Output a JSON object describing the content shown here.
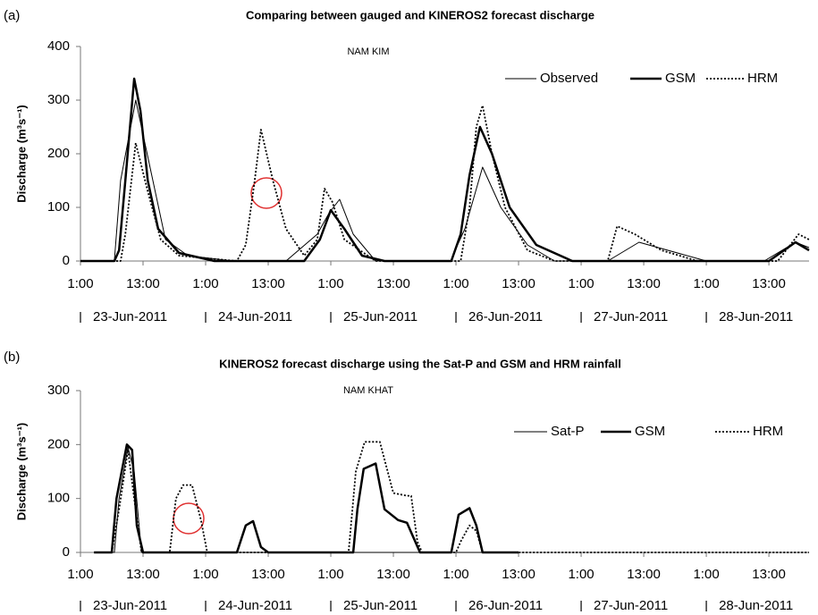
{
  "chart_data": [
    {
      "type": "line",
      "panel_label": "(a)",
      "title": "Comparing between gauged and KINEROS2 forecast discharge",
      "subtitle": "NAM KIM",
      "ylabel": "Discharge (m³s⁻¹)",
      "xlim": [
        1,
        140.7
      ],
      "ylim": [
        0,
        400
      ],
      "yticks": [
        0,
        100,
        200,
        300,
        400
      ],
      "xticks": [
        {
          "value": 1,
          "label": "1:00"
        },
        {
          "value": 13,
          "label": "13:00"
        },
        {
          "value": 25,
          "label": "1:00"
        },
        {
          "value": 37,
          "label": "13:00"
        },
        {
          "value": 49,
          "label": "1:00"
        },
        {
          "value": 61,
          "label": "13:00"
        },
        {
          "value": 73,
          "label": "1:00"
        },
        {
          "value": 85,
          "label": "13:00"
        },
        {
          "value": 97,
          "label": "1:00"
        },
        {
          "value": 109,
          "label": "13:00"
        },
        {
          "value": 121,
          "label": "1:00"
        },
        {
          "value": 133,
          "label": "13:00"
        }
      ],
      "day_ticks": [
        {
          "value": 1,
          "label": "23-Jun-2011"
        },
        {
          "value": 25,
          "label": "24-Jun-2011"
        },
        {
          "value": 49,
          "label": "25-Jun-2011"
        },
        {
          "value": 73,
          "label": "26-Jun-2011"
        },
        {
          "value": 97,
          "label": "27-Jun-2011"
        },
        {
          "value": 121,
          "label": "28-Jun-2011"
        }
      ],
      "legend": "upper right",
      "series": [
        {
          "name": "Observed",
          "color": "#000000",
          "style": "solid",
          "width": 1,
          "x": [
            1,
            7.5,
            8.7,
            11.6,
            17.3,
            21.6,
            30.1,
            40.4,
            46.4,
            48.7,
            50.7,
            53.3,
            57.6,
            72.1,
            73.3,
            74.7,
            78.1,
            81.6,
            86.7,
            91.9,
            102.1,
            108.1,
            121,
            132.1,
            138.1,
            140.7
          ],
          "values": [
            0,
            0,
            150,
            300,
            40,
            10,
            0,
            0,
            50,
            90,
            115,
            50,
            0,
            0,
            30,
            60,
            175,
            100,
            30,
            0,
            0,
            35,
            0,
            0,
            35,
            25
          ]
        },
        {
          "name": "GSM",
          "color": "#000000",
          "style": "solid",
          "width": 2.5,
          "x": [
            1,
            7.5,
            8.4,
            9.6,
            11.3,
            12.5,
            13.9,
            15.9,
            19.9,
            26.7,
            43.9,
            46.9,
            49,
            51.6,
            55,
            59.3,
            72.1,
            73.9,
            75.6,
            77.6,
            79.9,
            83.3,
            88.4,
            95.3,
            133,
            138.1,
            140.7
          ],
          "values": [
            0,
            0,
            20,
            150,
            340,
            280,
            150,
            60,
            15,
            0,
            0,
            40,
            95,
            60,
            10,
            0,
            0,
            50,
            160,
            250,
            200,
            100,
            30,
            0,
            0,
            35,
            20
          ]
        },
        {
          "name": "HRM",
          "color": "#000000",
          "style": "dotted",
          "width": 1.8,
          "x": [
            1,
            8.7,
            9.6,
            11.6,
            13.9,
            16.4,
            19.9,
            31,
            32.7,
            34.4,
            35.6,
            37.9,
            40.4,
            43.9,
            46.4,
            47.8,
            49.3,
            51.6,
            57.6,
            73.9,
            75.6,
            76.9,
            78.1,
            79.9,
            82.4,
            86.7,
            91.9,
            102.1,
            103.9,
            107.3,
            112.4,
            119.3,
            134.7,
            138.7,
            140.7
          ],
          "values": [
            0,
            0,
            50,
            220,
            130,
            40,
            10,
            0,
            30,
            150,
            245,
            150,
            60,
            10,
            40,
            135,
            110,
            40,
            0,
            0,
            100,
            250,
            290,
            200,
            100,
            20,
            0,
            0,
            65,
            50,
            20,
            0,
            0,
            50,
            40
          ]
        }
      ]
    },
    {
      "type": "line",
      "panel_label": "(b)",
      "title": "KINEROS2 forecast discharge using the Sat-P and GSM and HRM rainfall",
      "subtitle": "NAM KHAT",
      "ylabel": "Discharge (m³s⁻¹)",
      "xlim": [
        1,
        140.7
      ],
      "ylim": [
        0,
        300
      ],
      "yticks": [
        0,
        100,
        200,
        300
      ],
      "xticks": [
        {
          "value": 1,
          "label": "1:00"
        },
        {
          "value": 13,
          "label": "13:00"
        },
        {
          "value": 25,
          "label": "1:00"
        },
        {
          "value": 37,
          "label": "13:00"
        },
        {
          "value": 49,
          "label": "1:00"
        },
        {
          "value": 61,
          "label": "13:00"
        },
        {
          "value": 73,
          "label": "1:00"
        },
        {
          "value": 85,
          "label": "13:00"
        },
        {
          "value": 97,
          "label": "1:00"
        },
        {
          "value": 109,
          "label": "13:00"
        },
        {
          "value": 121,
          "label": "1:00"
        },
        {
          "value": 133,
          "label": "13:00"
        }
      ],
      "day_ticks": [
        {
          "value": 1,
          "label": "23-Jun-2011"
        },
        {
          "value": 25,
          "label": "24-Jun-2011"
        },
        {
          "value": 49,
          "label": "25-Jun-2011"
        },
        {
          "value": 73,
          "label": "26-Jun-2011"
        },
        {
          "value": 97,
          "label": "27-Jun-2011"
        },
        {
          "value": 121,
          "label": "28-Jun-2011"
        }
      ],
      "legend": "upper right",
      "series": [
        {
          "name": "Sat-P",
          "color": "#000000",
          "style": "solid",
          "width": 1,
          "x": [
            3.6,
            7.5,
            8.4,
            10.1,
            11.3,
            12.7,
            85
          ],
          "values": [
            0,
            0,
            100,
            195,
            150,
            0,
            0
          ]
        },
        {
          "name": "GSM",
          "color": "#000000",
          "style": "solid",
          "width": 2.5,
          "x": [
            3.6,
            7,
            7.9,
            9.9,
            10.9,
            11.8,
            13,
            31,
            32.7,
            34.1,
            35.6,
            37,
            53.3,
            54.1,
            55.3,
            57.6,
            59.3,
            61.9,
            63.6,
            66.1,
            72.1,
            73.5,
            75.6,
            76.9,
            78.1,
            85
          ],
          "values": [
            0,
            0,
            100,
            200,
            190,
            50,
            0,
            0,
            50,
            58,
            10,
            0,
            0,
            80,
            155,
            165,
            80,
            60,
            55,
            0,
            0,
            70,
            82,
            50,
            0,
            0
          ]
        },
        {
          "name": "HRM",
          "color": "#000000",
          "style": "dotted",
          "width": 1.8,
          "x": [
            3.6,
            7,
            8.4,
            10.1,
            11.3,
            12.7,
            18.1,
            19.3,
            20.7,
            22.4,
            24.1,
            25.3,
            52.4,
            53.8,
            55.5,
            58.4,
            61,
            63.6,
            64.4,
            65.6,
            66.5,
            73,
            73.9,
            75.6,
            76.9,
            78.1,
            140.7
          ],
          "values": [
            0,
            0,
            80,
            190,
            100,
            0,
            0,
            100,
            125,
            125,
            60,
            0,
            0,
            150,
            205,
            205,
            110,
            105,
            105,
            20,
            0,
            0,
            20,
            50,
            40,
            0,
            0
          ]
        }
      ]
    }
  ]
}
